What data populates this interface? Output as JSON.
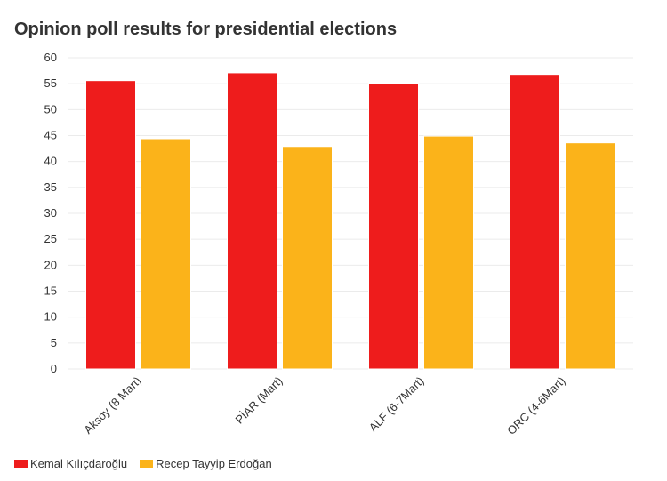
{
  "chart_data": {
    "type": "bar",
    "title": "Opinion poll results for presidential elections",
    "categories": [
      "Aksoy (8 Mart)",
      "PİAR (Mart)",
      "ALF (6-7Mart)",
      "ORC (4-6Mart)"
    ],
    "series": [
      {
        "name": "Kemal Kılıçdaroğlu",
        "color": "#ee1c1c",
        "values": [
          55.6,
          57.1,
          55.1,
          56.8
        ]
      },
      {
        "name": "Recep Tayyip Erdoğan",
        "color": "#fbb31a",
        "values": [
          44.4,
          42.9,
          44.9,
          43.6
        ]
      }
    ],
    "ylim": [
      0,
      60
    ],
    "yticks": [
      0,
      5,
      10,
      15,
      20,
      25,
      30,
      35,
      40,
      45,
      50,
      55,
      60
    ],
    "grid": true,
    "legend_position": "bottom-left",
    "xlabel": "",
    "ylabel": ""
  }
}
